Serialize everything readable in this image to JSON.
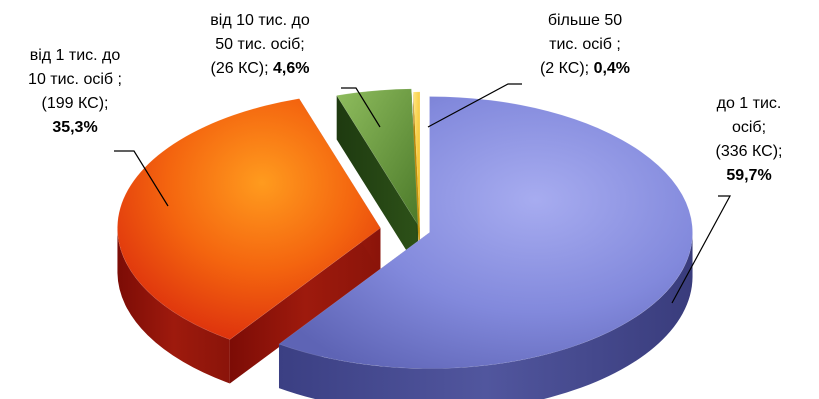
{
  "chart_data": {
    "type": "pie",
    "style": "3d-exploded",
    "legend": "none",
    "categories": [
      "до 1 тис. осіб;",
      "від 1 тис. до 10 тис. осіб ;",
      "від 10 тис. до 50 тис. осіб;",
      "більше 50 тис. осіб ;"
    ],
    "values": [
      59.7,
      35.3,
      4.6,
      0.4
    ],
    "counts": [
      336,
      199,
      26,
      2
    ],
    "colors": [
      "#7f86dc",
      "#e24a12",
      "#5e8a3a",
      "#f0c21e"
    ],
    "labels": [
      {
        "lines": [
          "до 1 тис.",
          "осіб;",
          "(336 КС);"
        ],
        "value": "59,7%"
      },
      {
        "lines": [
          "від 1 тис. до",
          "10 тис. осіб ;",
          "(199 КС);"
        ],
        "value": "35,3%"
      },
      {
        "lines": [
          "від 10 тис. до",
          "50 тис. осіб;"
        ],
        "last_prefix": "(26 КС); ",
        "value": "4,6%"
      },
      {
        "lines": [
          "більше 50",
          "тис. осіб ;"
        ],
        "last_prefix": "(2 КС); ",
        "value": "0,4%"
      }
    ]
  }
}
